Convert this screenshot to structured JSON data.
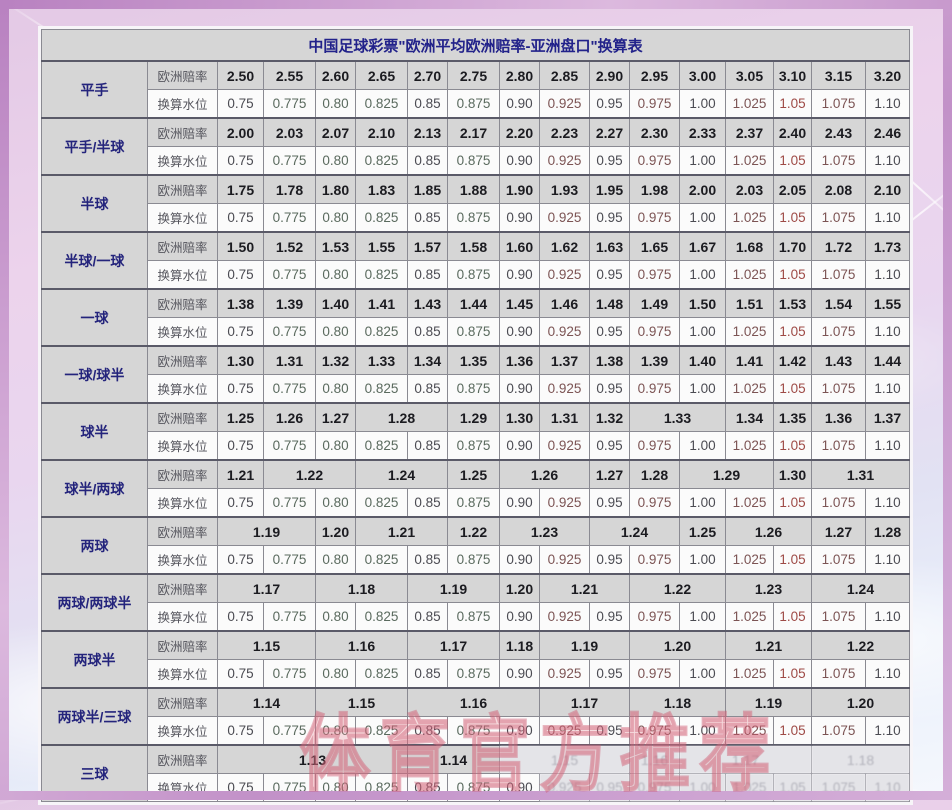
{
  "title": "中国足球彩票\"欧洲平均欧洲赔率-亚洲盘口\"换算表",
  "row_header_labels": {
    "odds": "欧洲赔率",
    "water": "换算水位"
  },
  "water_values": [
    "0.75",
    "0.775",
    "0.80",
    "0.825",
    "0.85",
    "0.875",
    "0.90",
    "0.925",
    "0.95",
    "0.975",
    "1.00",
    "1.025",
    "1.05",
    "1.075",
    "1.10"
  ],
  "watermark": "体育官方推荐",
  "groups": [
    {
      "label": "平手",
      "odds": [
        {
          "v": "2.50",
          "s": 1
        },
        {
          "v": "2.55",
          "s": 1
        },
        {
          "v": "2.60",
          "s": 1
        },
        {
          "v": "2.65",
          "s": 1
        },
        {
          "v": "2.70",
          "s": 1
        },
        {
          "v": "2.75",
          "s": 1
        },
        {
          "v": "2.80",
          "s": 1
        },
        {
          "v": "2.85",
          "s": 1
        },
        {
          "v": "2.90",
          "s": 1
        },
        {
          "v": "2.95",
          "s": 1
        },
        {
          "v": "3.00",
          "s": 1
        },
        {
          "v": "3.05",
          "s": 1
        },
        {
          "v": "3.10",
          "s": 1
        },
        {
          "v": "3.15",
          "s": 1
        },
        {
          "v": "3.20",
          "s": 1
        }
      ]
    },
    {
      "label": "平手/半球",
      "odds": [
        {
          "v": "2.00",
          "s": 1
        },
        {
          "v": "2.03",
          "s": 1
        },
        {
          "v": "2.07",
          "s": 1
        },
        {
          "v": "2.10",
          "s": 1
        },
        {
          "v": "2.13",
          "s": 1
        },
        {
          "v": "2.17",
          "s": 1
        },
        {
          "v": "2.20",
          "s": 1
        },
        {
          "v": "2.23",
          "s": 1
        },
        {
          "v": "2.27",
          "s": 1
        },
        {
          "v": "2.30",
          "s": 1
        },
        {
          "v": "2.33",
          "s": 1
        },
        {
          "v": "2.37",
          "s": 1
        },
        {
          "v": "2.40",
          "s": 1
        },
        {
          "v": "2.43",
          "s": 1
        },
        {
          "v": "2.46",
          "s": 1
        }
      ]
    },
    {
      "label": "半球",
      "odds": [
        {
          "v": "1.75",
          "s": 1
        },
        {
          "v": "1.78",
          "s": 1
        },
        {
          "v": "1.80",
          "s": 1
        },
        {
          "v": "1.83",
          "s": 1
        },
        {
          "v": "1.85",
          "s": 1
        },
        {
          "v": "1.88",
          "s": 1
        },
        {
          "v": "1.90",
          "s": 1
        },
        {
          "v": "1.93",
          "s": 1
        },
        {
          "v": "1.95",
          "s": 1
        },
        {
          "v": "1.98",
          "s": 1
        },
        {
          "v": "2.00",
          "s": 1
        },
        {
          "v": "2.03",
          "s": 1
        },
        {
          "v": "2.05",
          "s": 1
        },
        {
          "v": "2.08",
          "s": 1
        },
        {
          "v": "2.10",
          "s": 1
        }
      ]
    },
    {
      "label": "半球/一球",
      "odds": [
        {
          "v": "1.50",
          "s": 1
        },
        {
          "v": "1.52",
          "s": 1
        },
        {
          "v": "1.53",
          "s": 1
        },
        {
          "v": "1.55",
          "s": 1
        },
        {
          "v": "1.57",
          "s": 1
        },
        {
          "v": "1.58",
          "s": 1
        },
        {
          "v": "1.60",
          "s": 1
        },
        {
          "v": "1.62",
          "s": 1
        },
        {
          "v": "1.63",
          "s": 1
        },
        {
          "v": "1.65",
          "s": 1
        },
        {
          "v": "1.67",
          "s": 1
        },
        {
          "v": "1.68",
          "s": 1
        },
        {
          "v": "1.70",
          "s": 1
        },
        {
          "v": "1.72",
          "s": 1
        },
        {
          "v": "1.73",
          "s": 1
        }
      ]
    },
    {
      "label": "一球",
      "odds": [
        {
          "v": "1.38",
          "s": 1
        },
        {
          "v": "1.39",
          "s": 1
        },
        {
          "v": "1.40",
          "s": 1
        },
        {
          "v": "1.41",
          "s": 1
        },
        {
          "v": "1.43",
          "s": 1
        },
        {
          "v": "1.44",
          "s": 1
        },
        {
          "v": "1.45",
          "s": 1
        },
        {
          "v": "1.46",
          "s": 1
        },
        {
          "v": "1.48",
          "s": 1
        },
        {
          "v": "1.49",
          "s": 1
        },
        {
          "v": "1.50",
          "s": 1
        },
        {
          "v": "1.51",
          "s": 1
        },
        {
          "v": "1.53",
          "s": 1
        },
        {
          "v": "1.54",
          "s": 1
        },
        {
          "v": "1.55",
          "s": 1
        }
      ]
    },
    {
      "label": "一球/球半",
      "odds": [
        {
          "v": "1.30",
          "s": 1
        },
        {
          "v": "1.31",
          "s": 1
        },
        {
          "v": "1.32",
          "s": 1
        },
        {
          "v": "1.33",
          "s": 1
        },
        {
          "v": "1.34",
          "s": 1
        },
        {
          "v": "1.35",
          "s": 1
        },
        {
          "v": "1.36",
          "s": 1
        },
        {
          "v": "1.37",
          "s": 1
        },
        {
          "v": "1.38",
          "s": 1
        },
        {
          "v": "1.39",
          "s": 1
        },
        {
          "v": "1.40",
          "s": 1
        },
        {
          "v": "1.41",
          "s": 1
        },
        {
          "v": "1.42",
          "s": 1
        },
        {
          "v": "1.43",
          "s": 1
        },
        {
          "v": "1.44",
          "s": 1
        }
      ]
    },
    {
      "label": "球半",
      "odds": [
        {
          "v": "1.25",
          "s": 1
        },
        {
          "v": "1.26",
          "s": 1
        },
        {
          "v": "1.27",
          "s": 1
        },
        {
          "v": "1.28",
          "s": 2
        },
        {
          "v": "1.29",
          "s": 1
        },
        {
          "v": "1.30",
          "s": 1
        },
        {
          "v": "1.31",
          "s": 1
        },
        {
          "v": "1.32",
          "s": 1
        },
        {
          "v": "1.33",
          "s": 2
        },
        {
          "v": "1.34",
          "s": 1
        },
        {
          "v": "1.35",
          "s": 1
        },
        {
          "v": "1.36",
          "s": 1
        },
        {
          "v": "1.37",
          "s": 1
        }
      ]
    },
    {
      "label": "球半/两球",
      "odds": [
        {
          "v": "1.21",
          "s": 1
        },
        {
          "v": "1.22",
          "s": 2
        },
        {
          "v": "1.24",
          "s": 2
        },
        {
          "v": "1.25",
          "s": 1
        },
        {
          "v": "1.26",
          "s": 2
        },
        {
          "v": "1.27",
          "s": 1
        },
        {
          "v": "1.28",
          "s": 1
        },
        {
          "v": "1.29",
          "s": 2
        },
        {
          "v": "1.30",
          "s": 1
        },
        {
          "v": "1.31",
          "s": 2
        }
      ]
    },
    {
      "label": "两球",
      "odds": [
        {
          "v": "1.19",
          "s": 2
        },
        {
          "v": "1.20",
          "s": 1
        },
        {
          "v": "1.21",
          "s": 2
        },
        {
          "v": "1.22",
          "s": 1
        },
        {
          "v": "1.23",
          "s": 2
        },
        {
          "v": "1.24",
          "s": 2
        },
        {
          "v": "1.25",
          "s": 1
        },
        {
          "v": "1.26",
          "s": 2
        },
        {
          "v": "1.27",
          "s": 1
        },
        {
          "v": "1.28",
          "s": 1
        }
      ]
    },
    {
      "label": "两球/两球半",
      "odds": [
        {
          "v": "1.17",
          "s": 2
        },
        {
          "v": "1.18",
          "s": 2
        },
        {
          "v": "1.19",
          "s": 2
        },
        {
          "v": "1.20",
          "s": 1
        },
        {
          "v": "1.21",
          "s": 2
        },
        {
          "v": "1.22",
          "s": 2
        },
        {
          "v": "1.23",
          "s": 2
        },
        {
          "v": "1.24",
          "s": 2
        }
      ]
    },
    {
      "label": "两球半",
      "odds": [
        {
          "v": "1.15",
          "s": 2
        },
        {
          "v": "1.16",
          "s": 2
        },
        {
          "v": "1.17",
          "s": 2
        },
        {
          "v": "1.18",
          "s": 1
        },
        {
          "v": "1.19",
          "s": 2
        },
        {
          "v": "1.20",
          "s": 2
        },
        {
          "v": "1.21",
          "s": 2
        },
        {
          "v": "1.22",
          "s": 2
        }
      ]
    },
    {
      "label": "两球半/三球",
      "odds": [
        {
          "v": "1.14",
          "s": 2
        },
        {
          "v": "1.15",
          "s": 2
        },
        {
          "v": "1.16",
          "s": 3
        },
        {
          "v": "1.17",
          "s": 2
        },
        {
          "v": "1.18",
          "s": 2
        },
        {
          "v": "1.19",
          "s": 2
        },
        {
          "v": "1.20",
          "s": 2
        }
      ]
    },
    {
      "label": "三球",
      "faded_water_from": 7,
      "odds": [
        {
          "v": "1.13",
          "s": 4
        },
        {
          "v": "1.14",
          "s": 2
        },
        {
          "v": "1.15",
          "s": 3,
          "faded": true
        },
        {
          "v": "1.16",
          "s": 1,
          "faded": true
        },
        {
          "v": "1.17",
          "s": 3,
          "faded": true
        },
        {
          "v": "1.18",
          "s": 2,
          "faded": true
        }
      ]
    }
  ]
}
